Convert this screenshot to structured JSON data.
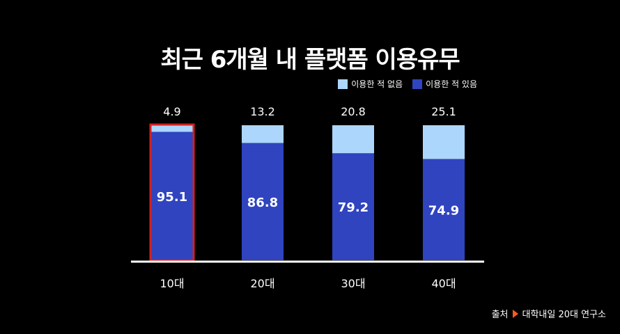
{
  "chart_data": {
    "type": "bar",
    "stacked": true,
    "title": "최근 6개월 내 플랫폼 이용유무",
    "categories": [
      "10대",
      "20대",
      "30대",
      "40대"
    ],
    "series": [
      {
        "name": "이용한 적 있음",
        "values": [
          95.1,
          86.8,
          79.2,
          74.9
        ],
        "color": "#3044c0"
      },
      {
        "name": "이용한 적 없음",
        "values": [
          4.9,
          13.2,
          20.8,
          25.1
        ],
        "color": "#acd6fb"
      }
    ],
    "ylim": [
      0,
      100
    ],
    "legend_position": "top-right",
    "highlight_category": "10대",
    "highlight_color": "#d42121"
  },
  "source": {
    "label": "출처",
    "text": "대학내일 20대 연구소",
    "arrow_color": "#ff5a1f"
  }
}
